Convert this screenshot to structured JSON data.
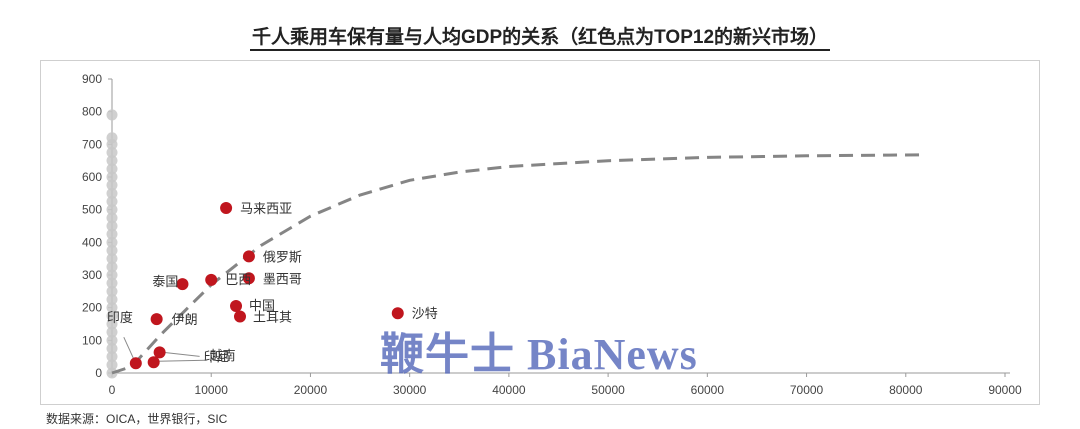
{
  "page": {
    "title": "千人乘用车保有量与人均GDP的关系（红色点为TOP12的新兴市场）",
    "source": "数据来源：OICA，世界银行，SIC",
    "watermark": "鞭牛士 BiaNews"
  },
  "chart_data": {
    "type": "scatter",
    "title": "千人乘用车保有量与人均GDP的关系（红色点为TOP12的新兴市场）",
    "xlabel": "",
    "ylabel": "",
    "xlim": [
      0,
      90000
    ],
    "ylim": [
      0,
      900
    ],
    "x_ticks": [
      0,
      10000,
      20000,
      30000,
      40000,
      50000,
      60000,
      70000,
      80000,
      90000
    ],
    "y_ticks": [
      0,
      100,
      200,
      300,
      400,
      500,
      600,
      700,
      800,
      900
    ],
    "grid": false,
    "colors": {
      "highlight": "#c0161e",
      "other": "#c8c8c8",
      "trend": "#858585",
      "axis": "#9a9a9a"
    },
    "series": [
      {
        "name": "TOP12新兴市场",
        "points": [
          {
            "label": "马来西亚",
            "x": 11500,
            "y": 505
          },
          {
            "label": "俄罗斯",
            "x": 13800,
            "y": 357
          },
          {
            "label": "墨西哥",
            "x": 13800,
            "y": 290
          },
          {
            "label": "泰国",
            "x": 7100,
            "y": 272
          },
          {
            "label": "巴西",
            "x": 10000,
            "y": 285
          },
          {
            "label": "中国",
            "x": 12500,
            "y": 205
          },
          {
            "label": "土耳其",
            "x": 12900,
            "y": 173
          },
          {
            "label": "伊朗",
            "x": 4500,
            "y": 165
          },
          {
            "label": "沙特",
            "x": 28800,
            "y": 183
          },
          {
            "label": "印度",
            "x": 2400,
            "y": 30
          },
          {
            "label": "印尼",
            "x": 4800,
            "y": 63
          },
          {
            "label": "越南",
            "x": 4200,
            "y": 33
          }
        ]
      },
      {
        "points": [
          {
            "x": 0,
            "y": 0
          },
          {
            "x": 0,
            "y": 25
          },
          {
            "x": 0,
            "y": 50
          },
          {
            "x": 0,
            "y": 75
          },
          {
            "x": 0,
            "y": 100
          },
          {
            "x": 0,
            "y": 125
          },
          {
            "x": 0,
            "y": 150
          },
          {
            "x": 0,
            "y": 175
          },
          {
            "x": 0,
            "y": 200
          },
          {
            "x": 0,
            "y": 225
          },
          {
            "x": 0,
            "y": 250
          },
          {
            "x": 0,
            "y": 275
          },
          {
            "x": 0,
            "y": 300
          },
          {
            "x": 0,
            "y": 325
          },
          {
            "x": 0,
            "y": 350
          },
          {
            "x": 0,
            "y": 375
          },
          {
            "x": 0,
            "y": 400
          },
          {
            "x": 0,
            "y": 425
          },
          {
            "x": 0,
            "y": 450
          },
          {
            "x": 0,
            "y": 475
          },
          {
            "x": 0,
            "y": 500
          },
          {
            "x": 0,
            "y": 525
          },
          {
            "x": 0,
            "y": 550
          },
          {
            "x": 0,
            "y": 575
          },
          {
            "x": 0,
            "y": 600
          },
          {
            "x": 0,
            "y": 625
          },
          {
            "x": 0,
            "y": 650
          },
          {
            "x": 0,
            "y": 675
          },
          {
            "x": 0,
            "y": 700
          },
          {
            "x": 0,
            "y": 720
          },
          {
            "x": 0,
            "y": 790
          }
        ]
      }
    ],
    "trend_line": {
      "style": "dashed",
      "points": [
        [
          0,
          0
        ],
        [
          2000,
          20
        ],
        [
          5000,
          120
        ],
        [
          10000,
          270
        ],
        [
          15000,
          390
        ],
        [
          20000,
          480
        ],
        [
          25000,
          545
        ],
        [
          30000,
          590
        ],
        [
          35000,
          615
        ],
        [
          40000,
          632
        ],
        [
          50000,
          650
        ],
        [
          60000,
          660
        ],
        [
          70000,
          665
        ],
        [
          82000,
          668
        ]
      ]
    }
  }
}
